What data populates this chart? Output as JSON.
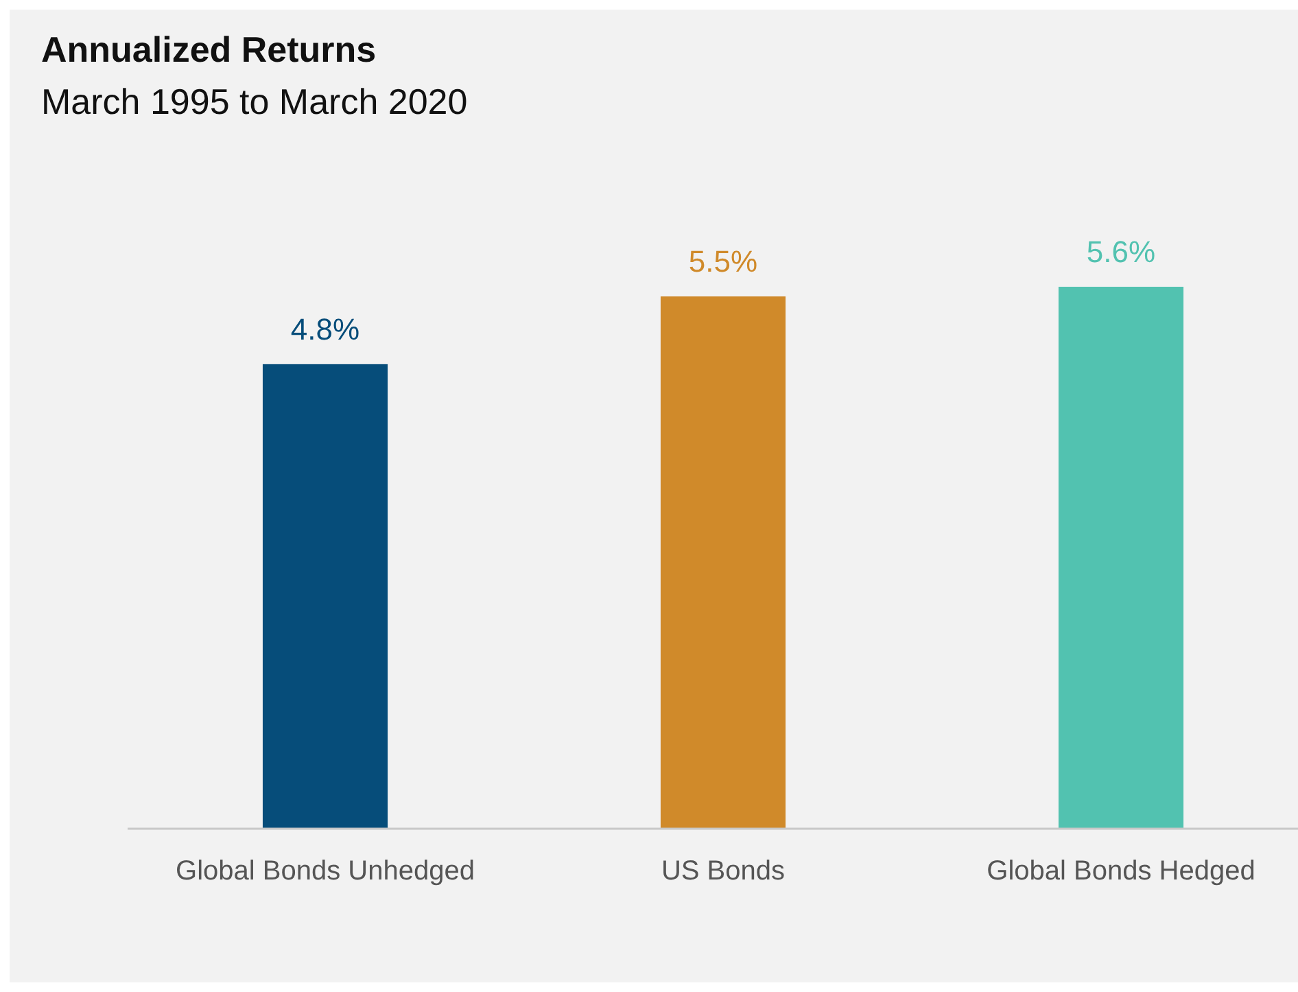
{
  "chart_data": {
    "type": "bar",
    "title": "Annualized Returns",
    "subtitle": "March 1995 to March 2020",
    "categories": [
      "Global Bonds Unhedged",
      "US Bonds",
      "Global Bonds Hedged"
    ],
    "values": [
      4.8,
      5.5,
      5.6
    ],
    "colors": [
      "#064d7a",
      "#d08a2a",
      "#52c2b0"
    ],
    "tick_labels": "x",
    "value_labels": [
      "4.8%",
      "5.5%",
      "5.6%"
    ]
  }
}
